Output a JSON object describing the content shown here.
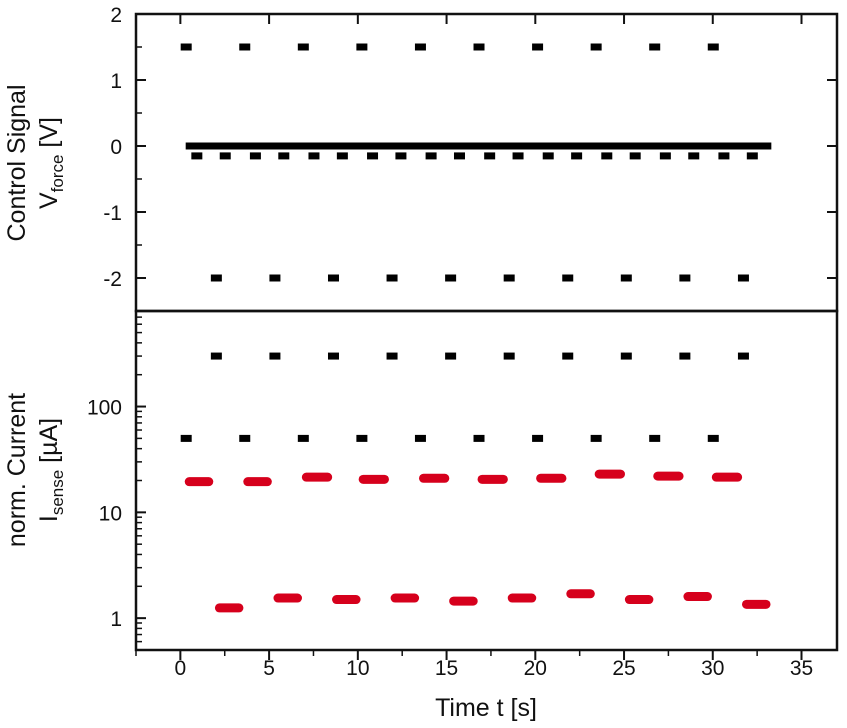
{
  "chart_data": [
    {
      "type": "scatter",
      "panel": "top",
      "ylabel_main": "Control Signal",
      "ylabel_sym": "V",
      "ylabel_sub": "force",
      "ylabel_unit": "[V]",
      "ylim": [
        -2.5,
        2.0
      ],
      "yticks": [
        2,
        1,
        0,
        -1,
        -2
      ],
      "ytick_labels": [
        "2",
        "1",
        "0",
        "-1",
        "-2"
      ],
      "grid": false,
      "series": [
        {
          "color": "#000000",
          "marker": "dash",
          "x": [
            0.3,
            3.6,
            6.9,
            10.2,
            13.5,
            16.8,
            20.1,
            23.4,
            26.7,
            30.0
          ],
          "y": [
            1.5,
            1.5,
            1.5,
            1.5,
            1.5,
            1.5,
            1.5,
            1.5,
            1.5,
            1.5
          ]
        },
        {
          "color": "#000000",
          "marker": "dash",
          "x": [
            2.0,
            5.3,
            8.6,
            11.9,
            15.2,
            18.5,
            21.8,
            25.1,
            28.4,
            31.7
          ],
          "y": [
            -2.0,
            -2.0,
            -2.0,
            -2.0,
            -2.0,
            -2.0,
            -2.0,
            -2.0,
            -2.0,
            -2.0
          ]
        },
        {
          "color": "#000000",
          "marker": "line",
          "x": [
            0.3,
            33.3
          ],
          "y": [
            0.0,
            0.0
          ]
        },
        {
          "color": "#000000",
          "marker": "dash",
          "x": [
            0.9,
            2.5,
            4.2,
            5.8,
            7.5,
            9.1,
            10.8,
            12.4,
            14.1,
            15.7,
            17.4,
            19.0,
            20.7,
            22.3,
            24.0,
            25.6,
            27.3,
            28.9,
            30.6,
            32.2
          ],
          "y": [
            -0.15,
            -0.15,
            -0.15,
            -0.15,
            -0.15,
            -0.15,
            -0.15,
            -0.15,
            -0.15,
            -0.15,
            -0.15,
            -0.15,
            -0.15,
            -0.15,
            -0.15,
            -0.15,
            -0.15,
            -0.15,
            -0.15,
            -0.15
          ]
        }
      ]
    },
    {
      "type": "scatter",
      "panel": "bottom",
      "ylabel_main": "norm. Current",
      "ylabel_sym": "I",
      "ylabel_sub": "sense",
      "ylabel_unit": "[µA]",
      "yscale": "log",
      "ylim": [
        0.5,
        800
      ],
      "yticks": [
        1,
        10,
        100
      ],
      "ytick_labels": [
        "1",
        "10",
        "100"
      ],
      "xlabel": "Time t [s]",
      "xlim": [
        -2.5,
        37.0
      ],
      "xticks": [
        0,
        5,
        10,
        15,
        20,
        25,
        30,
        35
      ],
      "xtick_labels": [
        "0",
        "5",
        "10",
        "15",
        "20",
        "25",
        "30",
        "35"
      ],
      "grid": false,
      "series": [
        {
          "color": "#000000",
          "marker": "dash",
          "x": [
            0.3,
            3.6,
            6.9,
            10.2,
            13.5,
            16.8,
            20.1,
            23.4,
            26.7,
            30.0
          ],
          "y": [
            50,
            50,
            50,
            50,
            50,
            50,
            50,
            50,
            50,
            50
          ]
        },
        {
          "color": "#000000",
          "marker": "dash",
          "x": [
            2.0,
            5.3,
            8.6,
            11.9,
            15.2,
            18.5,
            21.8,
            25.1,
            28.4,
            31.7
          ],
          "y": [
            300,
            300,
            300,
            300,
            300,
            300,
            300,
            300,
            300,
            300
          ]
        },
        {
          "color": "#d6001c",
          "marker": "seg",
          "x0": [
            0.5,
            3.8,
            7.1,
            10.3,
            13.7,
            17.0,
            20.3,
            23.6,
            26.9,
            30.2
          ],
          "x1": [
            1.6,
            4.9,
            8.3,
            11.5,
            14.9,
            18.2,
            21.5,
            24.8,
            28.1,
            31.4
          ],
          "y": [
            19.5,
            19.5,
            21.5,
            20.5,
            21.0,
            20.5,
            21.0,
            23.0,
            22.0,
            21.5
          ]
        },
        {
          "color": "#d6001c",
          "marker": "seg",
          "x0": [
            2.2,
            5.5,
            8.8,
            12.1,
            15.4,
            18.7,
            22.0,
            25.3,
            28.6,
            31.9
          ],
          "x1": [
            3.3,
            6.6,
            9.9,
            13.2,
            16.5,
            19.8,
            23.1,
            26.4,
            29.7,
            33.0
          ],
          "y": [
            1.25,
            1.55,
            1.5,
            1.55,
            1.45,
            1.55,
            1.7,
            1.5,
            1.6,
            1.35
          ]
        }
      ]
    }
  ]
}
